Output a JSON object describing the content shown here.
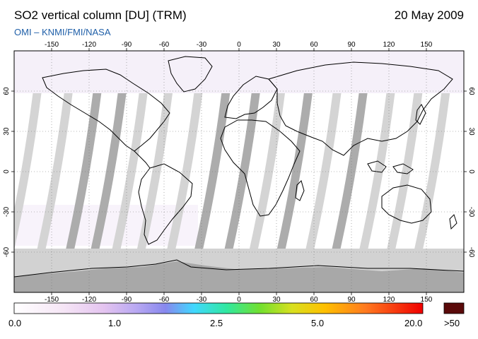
{
  "header": {
    "title": "SO2 vertical column [DU] (TRM)",
    "date": "20 May 2009",
    "credit": "OMI  –  KNMI/FMI/NASA"
  },
  "map": {
    "lon_ticks": [
      "-150",
      "-120",
      "-90",
      "-60",
      "-30",
      "0",
      "30",
      "60",
      "90",
      "120",
      "150"
    ],
    "lat_ticks": [
      "60",
      "30",
      "0",
      "-30",
      "-60"
    ],
    "colors": {
      "no_data_light": "#d2d2d2",
      "no_data_dark": "#a8a8a8",
      "coast": "#000000"
    }
  },
  "legend": {
    "labels": [
      "0.0",
      "1.0",
      "2.5",
      "5.0",
      "20.0"
    ],
    "over_label": ">50",
    "over_color": "#5a0a0a"
  }
}
